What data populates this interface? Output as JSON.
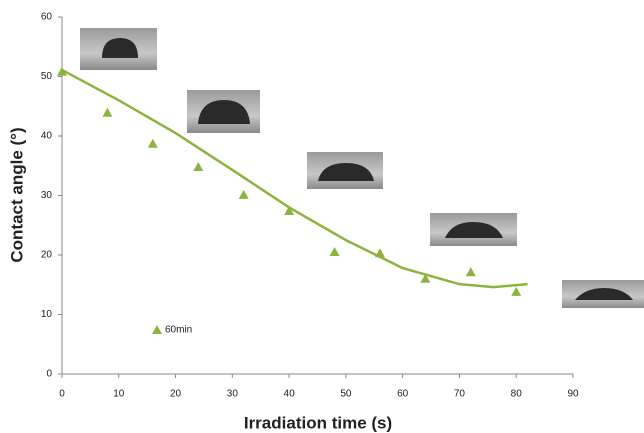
{
  "chart_data": {
    "type": "scatter",
    "x_label": "Irradiation time (s)",
    "y_label": "Contact angle (°)",
    "x": [
      0,
      8,
      16,
      24,
      32,
      40,
      48,
      56,
      64,
      72,
      80
    ],
    "series": [
      {
        "name": "60min",
        "color": "#8db33f",
        "values": [
          50.8,
          43.9,
          38.7,
          34.8,
          30.1,
          27.4,
          20.5,
          20.3,
          16.0,
          17.1,
          13.8
        ]
      }
    ],
    "trendline": {
      "color": "#8db33f",
      "x": [
        0,
        10,
        20,
        30,
        40,
        50,
        60,
        70,
        76,
        82
      ],
      "values": [
        51.1,
        46,
        40.5,
        34.3,
        28,
        22.5,
        17.8,
        15.1,
        14.6,
        15.1
      ]
    },
    "xlim": [
      0,
      90
    ],
    "xticks": [
      0,
      10,
      20,
      30,
      40,
      50,
      60,
      70,
      80,
      90
    ],
    "ylim": [
      0,
      60
    ],
    "yticks": [
      0,
      10,
      20,
      30,
      40,
      50,
      60
    ],
    "grid": false
  }
}
